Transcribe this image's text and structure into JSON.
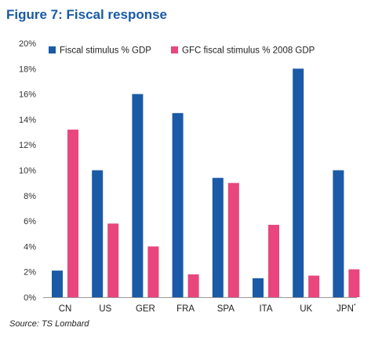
{
  "figure": {
    "title": "Figure 7: Fiscal response",
    "source": "Source: TS Lombard"
  },
  "chart_data": {
    "type": "bar",
    "title": "Figure 7: Fiscal response",
    "xlabel": "",
    "ylabel": "",
    "categories": [
      "CN",
      "US",
      "GER",
      "FRA",
      "SPA",
      "ITA",
      "UK",
      "JPN"
    ],
    "category_footnote_marks": {
      "JPN": "*"
    },
    "series": [
      {
        "name": "Fiscal stimulus % GDP",
        "color": "#1a5aa6",
        "values": [
          2.1,
          10.0,
          16.0,
          14.5,
          9.4,
          1.5,
          18.0,
          10.0
        ]
      },
      {
        "name": "GFC fiscal stimulus % 2008 GDP",
        "color": "#e8467c",
        "values": [
          13.2,
          5.8,
          4.0,
          1.8,
          9.0,
          5.7,
          1.7,
          2.2
        ]
      }
    ],
    "ylim": [
      0,
      20
    ],
    "yticks": [
      0,
      2,
      4,
      6,
      8,
      10,
      12,
      14,
      16,
      18,
      20
    ],
    "ytick_labels": [
      "0%",
      "2%",
      "4%",
      "6%",
      "8%",
      "10%",
      "12%",
      "14%",
      "16%",
      "18%",
      "20%"
    ],
    "grid": false,
    "legend_position": "top"
  }
}
